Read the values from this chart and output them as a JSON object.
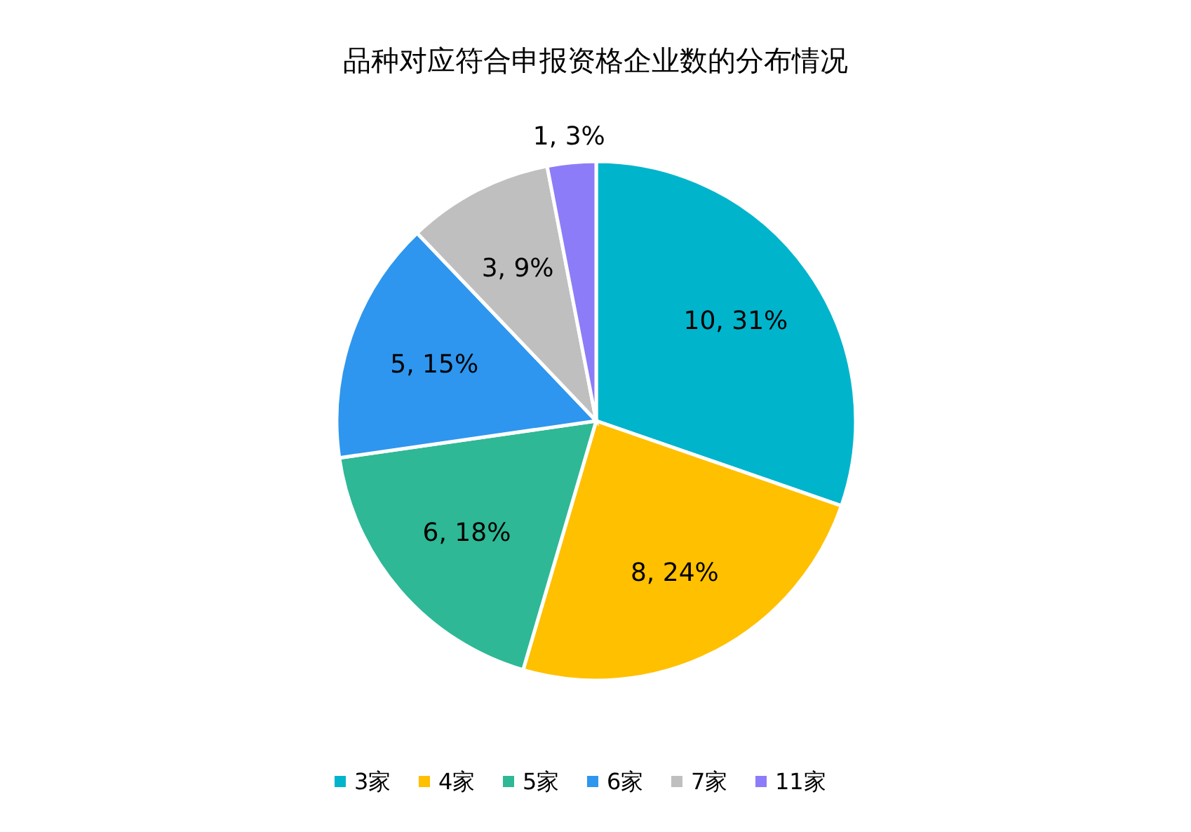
{
  "chart_data": {
    "type": "pie",
    "title": "品种对应符合申报资格企业数的分布情况",
    "categories": [
      "3家",
      "4家",
      "5家",
      "6家",
      "7家",
      "11家"
    ],
    "values": [
      10,
      8,
      6,
      5,
      3,
      1
    ],
    "colors": [
      "#00b4cc",
      "#ffc000",
      "#2eb896",
      "#2e96ee",
      "#bfbfbf",
      "#8c7cf8"
    ],
    "value_labels": [
      "10, 31%",
      "8, 24%",
      "6, 18%",
      "5, 15%",
      "3, 9%",
      "1, 3%"
    ],
    "legend": "bottom"
  }
}
